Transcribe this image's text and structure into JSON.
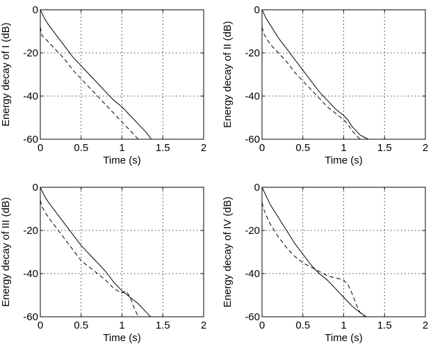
{
  "chart_data": [
    {
      "type": "line",
      "title": "",
      "xlabel": "Time (s)",
      "ylabel": "Energy decay of  I  (dB)",
      "xlim": [
        0,
        2
      ],
      "ylim": [
        -60,
        0
      ],
      "xticks": [
        "0",
        "0.5",
        "1",
        "1.5",
        "2"
      ],
      "yticks": [
        "0",
        "-20",
        "-40",
        "-60"
      ],
      "grid": true,
      "series": [
        {
          "name": "solid",
          "style": "solid",
          "x": [
            0,
            0.05,
            0.1,
            0.2,
            0.3,
            0.4,
            0.5,
            0.6,
            0.7,
            0.8,
            0.9,
            1.0,
            1.1,
            1.2,
            1.3,
            1.36
          ],
          "y": [
            0,
            -4,
            -7,
            -12,
            -17,
            -22,
            -26,
            -30,
            -34,
            -38,
            -42,
            -45,
            -49,
            -53,
            -57,
            -60
          ]
        },
        {
          "name": "dashed",
          "style": "dashed",
          "x": [
            0,
            0.02,
            0.05,
            0.1,
            0.2,
            0.3,
            0.4,
            0.5,
            0.6,
            0.7,
            0.8,
            0.9,
            1.0,
            1.1,
            1.2
          ],
          "y": [
            -8,
            -12,
            -13,
            -15,
            -19,
            -23,
            -28,
            -32,
            -36,
            -40,
            -44,
            -48,
            -52,
            -56,
            -60
          ]
        }
      ]
    },
    {
      "type": "line",
      "title": "",
      "xlabel": "Time (s)",
      "ylabel": "Energy decay of  II  (dB)",
      "xlim": [
        0,
        2
      ],
      "ylim": [
        -60,
        0
      ],
      "xticks": [
        "0",
        "0.5",
        "1",
        "1.5",
        "2"
      ],
      "yticks": [
        "0",
        "-20",
        "-40",
        "-60"
      ],
      "grid": true,
      "series": [
        {
          "name": "solid",
          "style": "solid",
          "x": [
            0,
            0.05,
            0.1,
            0.2,
            0.3,
            0.4,
            0.5,
            0.6,
            0.7,
            0.8,
            0.9,
            1.0,
            1.05,
            1.1,
            1.2,
            1.3
          ],
          "y": [
            0,
            -4,
            -7,
            -13,
            -18,
            -23,
            -28,
            -33,
            -38,
            -42,
            -46,
            -49,
            -51,
            -54,
            -58,
            -60
          ]
        },
        {
          "name": "dashed",
          "style": "dashed",
          "x": [
            0,
            0.02,
            0.05,
            0.1,
            0.2,
            0.3,
            0.4,
            0.5,
            0.6,
            0.7,
            0.8,
            0.9,
            1.0,
            1.05,
            1.1,
            1.2
          ],
          "y": [
            -8,
            -11,
            -13,
            -16,
            -20,
            -24,
            -29,
            -33,
            -37,
            -41,
            -45,
            -48,
            -51,
            -53,
            -56,
            -60
          ]
        }
      ]
    },
    {
      "type": "line",
      "title": "",
      "xlabel": "Time (s)",
      "ylabel": "Energy decay of III (dB)",
      "xlim": [
        0,
        2
      ],
      "ylim": [
        -60,
        0
      ],
      "xticks": [
        "0",
        "0.5",
        "1",
        "1.5",
        "2"
      ],
      "yticks": [
        "0",
        "-20",
        "-40",
        "-60"
      ],
      "grid": true,
      "series": [
        {
          "name": "solid",
          "style": "solid",
          "x": [
            0,
            0.05,
            0.1,
            0.2,
            0.3,
            0.4,
            0.5,
            0.6,
            0.7,
            0.8,
            0.9,
            1.0,
            1.1,
            1.2,
            1.3,
            1.35
          ],
          "y": [
            0,
            -4,
            -7,
            -12,
            -17,
            -22,
            -27,
            -31,
            -35,
            -39,
            -44,
            -48,
            -51,
            -54,
            -58,
            -60
          ]
        },
        {
          "name": "dashed",
          "style": "dashed",
          "x": [
            0,
            0.02,
            0.05,
            0.1,
            0.2,
            0.3,
            0.4,
            0.5,
            0.6,
            0.7,
            0.8,
            0.9,
            1.0,
            1.05,
            1.1,
            1.15,
            1.2
          ],
          "y": [
            -6,
            -9,
            -11,
            -14,
            -19,
            -24,
            -29,
            -34,
            -37,
            -40,
            -43,
            -47,
            -49,
            -48,
            -51,
            -56,
            -60
          ]
        }
      ]
    },
    {
      "type": "line",
      "title": "",
      "xlabel": "Time (s)",
      "ylabel": "Energy decay of  IV  (dB)",
      "xlim": [
        0,
        2
      ],
      "ylim": [
        -60,
        0
      ],
      "xticks": [
        "0",
        "0.5",
        "1",
        "1.5",
        "2"
      ],
      "yticks": [
        "0",
        "-20",
        "-40",
        "-60"
      ],
      "grid": true,
      "series": [
        {
          "name": "solid",
          "style": "solid",
          "x": [
            0,
            0.05,
            0.1,
            0.2,
            0.3,
            0.4,
            0.5,
            0.6,
            0.7,
            0.8,
            0.9,
            1.0,
            1.1,
            1.2,
            1.28
          ],
          "y": [
            0,
            -4,
            -8,
            -14,
            -20,
            -26,
            -31,
            -36,
            -40,
            -43,
            -47,
            -51,
            -55,
            -58,
            -60
          ]
        },
        {
          "name": "dashed",
          "style": "dashed",
          "x": [
            0,
            0.02,
            0.05,
            0.1,
            0.2,
            0.3,
            0.4,
            0.5,
            0.6,
            0.7,
            0.8,
            0.9,
            1.0,
            1.05,
            1.1,
            1.15,
            1.2,
            1.25
          ],
          "y": [
            -7,
            -10,
            -13,
            -17,
            -23,
            -28,
            -32,
            -35,
            -37,
            -39,
            -41,
            -42,
            -43,
            -45,
            -49,
            -54,
            -58,
            -60
          ]
        }
      ]
    }
  ]
}
